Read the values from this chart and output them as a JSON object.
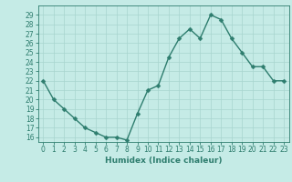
{
  "x": [
    0,
    1,
    2,
    3,
    4,
    5,
    6,
    7,
    8,
    9,
    10,
    11,
    12,
    13,
    14,
    15,
    16,
    17,
    18,
    19,
    20,
    21,
    22,
    23
  ],
  "y": [
    22,
    20,
    19,
    18,
    17,
    16.5,
    16,
    16,
    15.7,
    18.5,
    21,
    21.5,
    24.5,
    26.5,
    27.5,
    26.5,
    29,
    28.5,
    26.5,
    25,
    23.5,
    23.5,
    22,
    22
  ],
  "xlabel": "Humidex (Indice chaleur)",
  "ylim": [
    15.5,
    30
  ],
  "xlim": [
    -0.5,
    23.5
  ],
  "yticks": [
    16,
    17,
    18,
    19,
    20,
    21,
    22,
    23,
    24,
    25,
    26,
    27,
    28,
    29
  ],
  "xticks": [
    0,
    1,
    2,
    3,
    4,
    5,
    6,
    7,
    8,
    9,
    10,
    11,
    12,
    13,
    14,
    15,
    16,
    17,
    18,
    19,
    20,
    21,
    22,
    23
  ],
  "line_color": "#2e7d6e",
  "marker_color": "#2e7d6e",
  "bg_color": "#c5ebe6",
  "grid_color": "#a8d5cf",
  "tick_label_color": "#2e7d6e",
  "xlabel_color": "#2e7d6e",
  "xlabel_fontsize": 6.5,
  "tick_fontsize": 5.5,
  "linewidth": 1.0,
  "markersize": 2.5
}
